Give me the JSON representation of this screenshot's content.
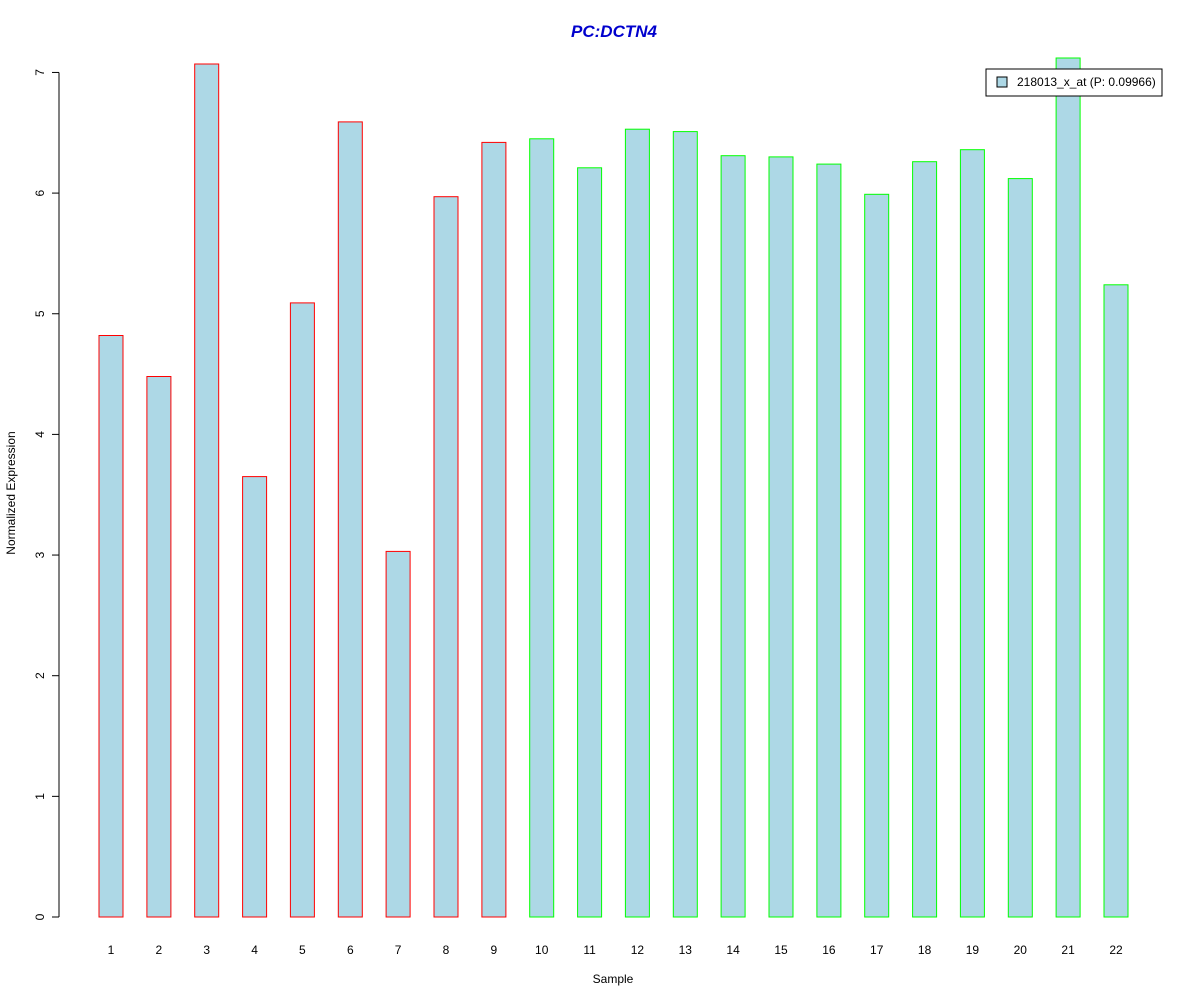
{
  "chart_data": {
    "type": "bar",
    "title": "PC:DCTN4",
    "xlabel": "Sample",
    "ylabel": "Normalized Expression",
    "categories": [
      "1",
      "2",
      "3",
      "4",
      "5",
      "6",
      "7",
      "8",
      "9",
      "10",
      "11",
      "12",
      "13",
      "14",
      "15",
      "16",
      "17",
      "18",
      "19",
      "20",
      "21",
      "22"
    ],
    "series": [
      {
        "name": "218013_x_at (P: 0.09966)",
        "values": [
          4.82,
          4.48,
          7.07,
          3.65,
          5.09,
          6.59,
          3.03,
          5.97,
          6.42,
          6.45,
          6.21,
          6.53,
          6.51,
          6.31,
          6.3,
          6.24,
          5.99,
          6.26,
          6.36,
          6.12,
          7.12,
          5.24
        ]
      }
    ],
    "groups": [
      "red",
      "red",
      "red",
      "red",
      "red",
      "red",
      "red",
      "red",
      "red",
      "green",
      "green",
      "green",
      "green",
      "green",
      "green",
      "green",
      "green",
      "green",
      "green",
      "green",
      "green",
      "green"
    ],
    "yticks": [
      0,
      1,
      2,
      3,
      4,
      5,
      6,
      7
    ],
    "ylim": [
      0,
      7.07
    ],
    "legend_position": "top-right",
    "grid": false,
    "colors": {
      "bar_fill": "#add8e6",
      "red_border": "#ff0000",
      "green_border": "#00ff00",
      "title": "#0000cd",
      "axis": "#000000"
    }
  }
}
